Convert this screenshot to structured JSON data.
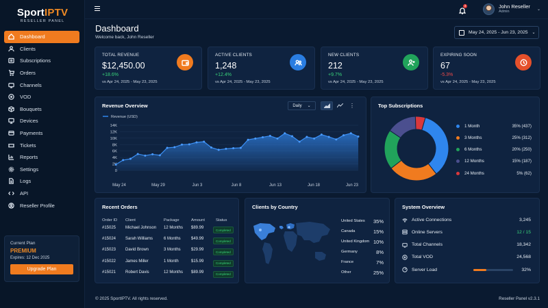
{
  "brand": {
    "name_part1": "Sport",
    "name_part2": "IPTV",
    "subtitle": "RESELLER PANEL"
  },
  "sidebar": {
    "items": [
      {
        "label": "Dashboard",
        "icon": "home-icon",
        "active": true
      },
      {
        "label": "Clients",
        "icon": "user-icon"
      },
      {
        "label": "Subscriptions",
        "icon": "list-icon"
      },
      {
        "label": "Orders",
        "icon": "cart-icon"
      },
      {
        "label": "Channels",
        "icon": "tv-icon"
      },
      {
        "label": "VOD",
        "icon": "film-icon"
      },
      {
        "label": "Bouquets",
        "icon": "box-icon"
      },
      {
        "label": "Devices",
        "icon": "monitor-icon"
      },
      {
        "label": "Payments",
        "icon": "card-icon"
      },
      {
        "label": "Tickets",
        "icon": "ticket-icon"
      },
      {
        "label": "Reports",
        "icon": "chart-icon"
      },
      {
        "label": "Settings",
        "icon": "gear-icon"
      },
      {
        "label": "Logs",
        "icon": "file-icon"
      },
      {
        "label": "API",
        "icon": "code-icon"
      },
      {
        "label": "Reseller Profile",
        "icon": "profile-icon"
      }
    ]
  },
  "plan": {
    "label": "Current Plan",
    "name": "PREMIUM",
    "expires": "Expires: 12 Dec 2025",
    "button": "Upgrade Plan"
  },
  "header": {
    "notifications": "3",
    "user_name": "John Reseller",
    "user_role": "Admin"
  },
  "page": {
    "title": "Dashboard",
    "subtitle": "Welcome back, John Reseller",
    "date_range": "May 24, 2025 - Jun 23, 2025"
  },
  "stats": [
    {
      "label": "TOTAL REVENUE",
      "value": "$12,450.00",
      "change": "+18.6%",
      "compare": "vs Apr 24, 2025 - May 23, 2025",
      "color": "#f07b1f",
      "icon": "wallet-icon",
      "positive": true
    },
    {
      "label": "ACTIVE CLIENTS",
      "value": "1,248",
      "change": "+12.4%",
      "compare": "vs Apr 24, 2025 - May 23, 2025",
      "color": "#2a7de1",
      "icon": "users-icon",
      "positive": true
    },
    {
      "label": "NEW CLIENTS",
      "value": "212",
      "change": "+9.7%",
      "compare": "vs Apr 24, 2025 - May 23, 2025",
      "color": "#21a35b",
      "icon": "user-plus-icon",
      "positive": true
    },
    {
      "label": "EXPIRING SOON",
      "value": "67",
      "change": "-5.3%",
      "compare": "vs Apr 24, 2025 - May 23, 2025",
      "color": "#e5502b",
      "icon": "clock-icon",
      "positive": false
    }
  ],
  "revenue": {
    "title": "Revenue Overview",
    "period": "Daily"
  },
  "chart_data": [
    {
      "type": "area",
      "title": "Revenue Overview",
      "legend": "Revenue (USD)",
      "y_ticks": [
        "0",
        "2K",
        "4K",
        "6K",
        "8K",
        "10K",
        "12K",
        "14K"
      ],
      "ylim": [
        0,
        14000
      ],
      "x_labels": [
        "May 24",
        "May 29",
        "Jun 3",
        "Jun 8",
        "Jun 13",
        "Jun 18",
        "Jun 23"
      ],
      "values": [
        1800,
        3200,
        3600,
        5100,
        4600,
        5000,
        4700,
        7000,
        7200,
        8000,
        8100,
        8700,
        8900,
        7100,
        6400,
        6700,
        6900,
        7000,
        9500,
        9900,
        10300,
        10700,
        9900,
        11500,
        10600,
        8900,
        10400,
        9900,
        11100,
        10400,
        9600,
        10900,
        11500,
        10500
      ]
    },
    {
      "type": "pie",
      "title": "Top Subscriptions",
      "slices": [
        {
          "name": "1 Month",
          "percent": 35,
          "count": 437,
          "color": "#2f86ee"
        },
        {
          "name": "3 Months",
          "percent": 25,
          "count": 312,
          "color": "#f07b1f"
        },
        {
          "name": "6 Months",
          "percent": 20,
          "count": 250,
          "color": "#21a35b"
        },
        {
          "name": "12 Months",
          "percent": 15,
          "count": 187,
          "color": "#4b4f8f"
        },
        {
          "name": "24 Months",
          "percent": 5,
          "count": 62,
          "color": "#d9383c"
        }
      ]
    }
  ],
  "subs_legend": [
    {
      "name": "1 Month",
      "pc": "35% (437)",
      "color": "#2f86ee"
    },
    {
      "name": "3 Months",
      "pc": "25% (312)",
      "color": "#f07b1f"
    },
    {
      "name": "6 Months",
      "pc": "20% (250)",
      "color": "#21a35b"
    },
    {
      "name": "12 Months",
      "pc": "15% (187)",
      "color": "#4b4f8f"
    },
    {
      "name": "24 Months",
      "pc": "5% (62)",
      "color": "#d9383c"
    }
  ],
  "orders": {
    "title": "Recent Orders",
    "headers": [
      "Order ID",
      "Client",
      "Package",
      "Amount",
      "Status"
    ],
    "rows": [
      [
        "#15025",
        "Michael Johnson",
        "12 Months",
        "$89.99",
        "Completed"
      ],
      [
        "#15024",
        "Sarah Williams",
        "6 Months",
        "$49.99",
        "Completed"
      ],
      [
        "#15023",
        "David Brown",
        "3 Months",
        "$29.99",
        "Completed"
      ],
      [
        "#15022",
        "James Miller",
        "1 Month",
        "$15.99",
        "Completed"
      ],
      [
        "#15021",
        "Robert Davis",
        "12 Months",
        "$89.99",
        "Completed"
      ]
    ]
  },
  "countries": {
    "title": "Clients by Country",
    "rows": [
      {
        "name": "United States",
        "pc": "35%"
      },
      {
        "name": "Canada",
        "pc": "15%"
      },
      {
        "name": "United Kingdom",
        "pc": "10%"
      },
      {
        "name": "Germany",
        "pc": "8%"
      },
      {
        "name": "France",
        "pc": "7%"
      },
      {
        "name": "Other",
        "pc": "25%"
      }
    ]
  },
  "system": {
    "title": "System Overview",
    "rows": [
      {
        "name": "Active Connections",
        "value": "3,245",
        "icon": "signal-icon"
      },
      {
        "name": "Online Servers",
        "value": "12 / 15",
        "icon": "server-icon",
        "highlight": "#39d37a"
      },
      {
        "name": "Total Channels",
        "value": "18,342",
        "icon": "tv-icon"
      },
      {
        "name": "Total VOD",
        "value": "24,568",
        "icon": "film-icon"
      },
      {
        "name": "Server Load",
        "value": "32%",
        "icon": "gauge-icon",
        "load": 0.32
      }
    ]
  },
  "footer": {
    "copyright": "© 2025 SportIPTV. All rights reserved.",
    "version": "Reseller Panel v2.3.1"
  }
}
